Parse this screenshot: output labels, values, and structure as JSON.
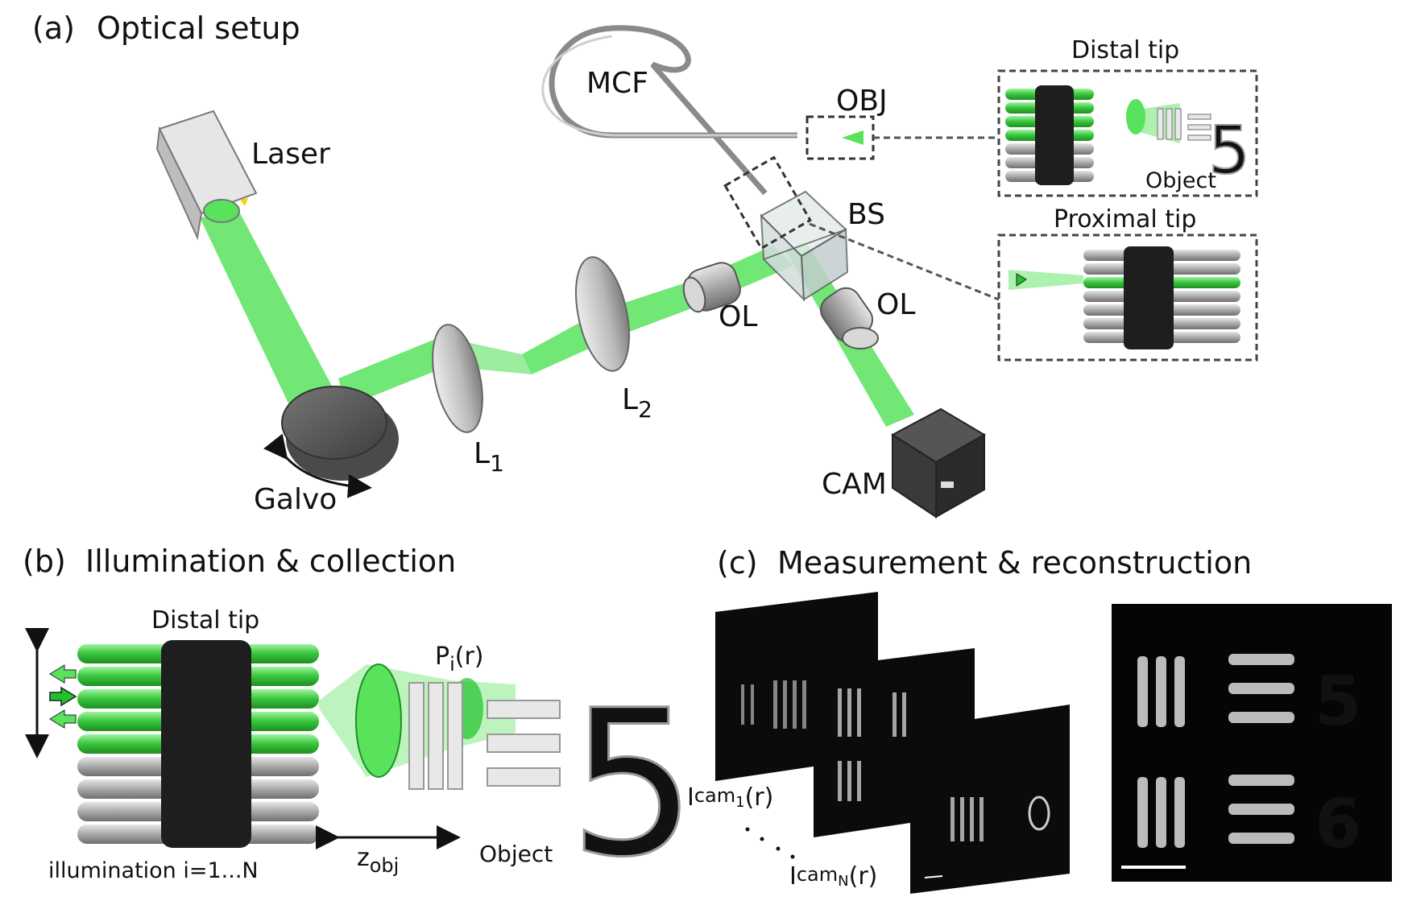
{
  "panel_a": {
    "tag": "(a)",
    "title": "Optical setup",
    "labels": {
      "laser": "Laser",
      "mcf": "MCF",
      "obj": "OBJ",
      "bs": "BS",
      "ol_left": "OL",
      "ol_right": "OL",
      "l1_main": "L",
      "l1_sub": "1",
      "l2_main": "L",
      "l2_sub": "2",
      "galvo": "Galvo",
      "cam": "CAM"
    },
    "inset_distal": {
      "title": "Distal tip",
      "object": "Object",
      "digit": "5"
    },
    "inset_proximal": {
      "title": "Proximal tip"
    }
  },
  "panel_b": {
    "tag": "(b)",
    "title": "Illumination & collection",
    "distal": "Distal tip",
    "p_main": "P",
    "p_sub": "i",
    "p_arg": "(r)",
    "z_main": "z",
    "z_sub": "obj",
    "object": "Object",
    "digit": "5",
    "illumination": "illumination i=1...N"
  },
  "panel_c": {
    "tag": "(c)",
    "title": "Measurement & reconstruction",
    "icam1_main": "I",
    "icam1_sub": "cam",
    "icam1_subsub": "1",
    "icam1_arg": "(r)",
    "icamN_main": "I",
    "icamN_sub": "cam",
    "icamN_subsub": "N",
    "icamN_arg": "(r)",
    "digit_top": "5",
    "digit_bottom": "6"
  },
  "colors": {
    "beam": "#59e35d",
    "beam_dark": "#1fc22a",
    "fiber_green": "#38c43c",
    "fiber_gray": "#a8a8a8",
    "dark_band": "#1e1e1e",
    "inset_border": "#444444"
  }
}
